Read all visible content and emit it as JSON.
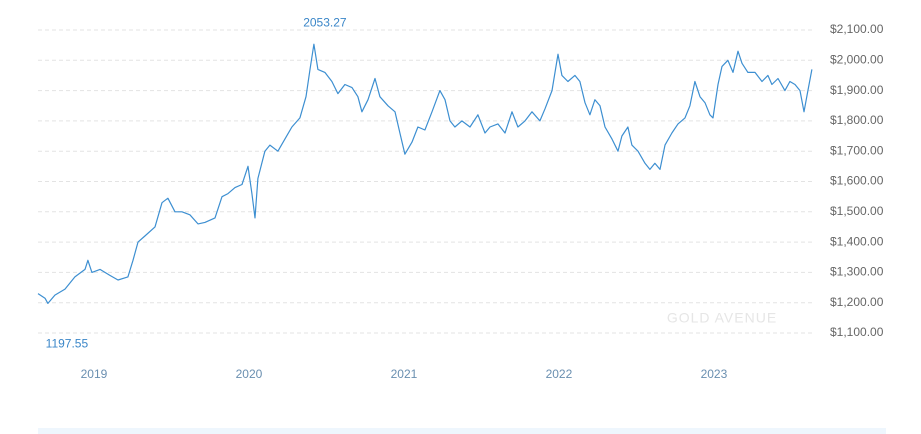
{
  "chart_data": {
    "type": "line",
    "max_label": "2053.27",
    "min_label": "1197.55",
    "watermark": "GOLD AVENUE",
    "series": [
      {
        "color": "#3d8fd1",
        "x": [
          2018.639,
          2018.684,
          2018.703,
          2018.748,
          2018.813,
          2018.877,
          2018.942,
          2018.961,
          2018.987,
          2019.039,
          2019.103,
          2019.155,
          2019.219,
          2019.252,
          2019.284,
          2019.329,
          2019.394,
          2019.439,
          2019.477,
          2019.523,
          2019.568,
          2019.619,
          2019.671,
          2019.716,
          2019.781,
          2019.826,
          2019.865,
          2019.91,
          2019.955,
          2019.994,
          2020.019,
          2020.039,
          2020.058,
          2020.103,
          2020.135,
          2020.187,
          2020.232,
          2020.277,
          2020.329,
          2020.368,
          2020.394,
          2020.419,
          2020.445,
          2020.49,
          2020.535,
          2020.574,
          2020.619,
          2020.665,
          2020.703,
          2020.729,
          2020.768,
          2020.813,
          2020.845,
          2020.897,
          2020.942,
          2020.974,
          2021.006,
          2021.052,
          2021.09,
          2021.135,
          2021.181,
          2021.232,
          2021.265,
          2021.297,
          2021.329,
          2021.374,
          2021.426,
          2021.477,
          2021.523,
          2021.555,
          2021.606,
          2021.652,
          2021.697,
          2021.735,
          2021.781,
          2021.826,
          2021.877,
          2021.91,
          2021.955,
          2021.994,
          2022.019,
          2022.058,
          2022.103,
          2022.135,
          2022.168,
          2022.2,
          2022.232,
          2022.265,
          2022.297,
          2022.342,
          2022.381,
          2022.406,
          2022.445,
          2022.471,
          2022.51,
          2022.555,
          2022.587,
          2022.619,
          2022.652,
          2022.684,
          2022.729,
          2022.768,
          2022.813,
          2022.845,
          2022.877,
          2022.91,
          2022.942,
          2022.974,
          2022.994,
          2023.026,
          2023.052,
          2023.09,
          2023.123,
          2023.155,
          2023.181,
          2023.219,
          2023.265,
          2023.31,
          2023.348,
          2023.374,
          2023.413,
          2023.458,
          2023.49,
          2023.523,
          2023.555,
          2023.581,
          2023.606,
          2023.632
        ],
        "values": [
          1230,
          1215,
          1197.55,
          1225,
          1245,
          1285,
          1310,
          1340,
          1300,
          1310,
          1290,
          1275,
          1285,
          1340,
          1400,
          1420,
          1450,
          1530,
          1545,
          1500,
          1500,
          1490,
          1460,
          1465,
          1480,
          1550,
          1560,
          1580,
          1590,
          1650,
          1560,
          1480,
          1610,
          1700,
          1720,
          1700,
          1740,
          1780,
          1810,
          1880,
          1970,
          2053.27,
          1970,
          1960,
          1930,
          1890,
          1920,
          1910,
          1880,
          1830,
          1870,
          1940,
          1880,
          1850,
          1830,
          1760,
          1690,
          1730,
          1780,
          1770,
          1830,
          1900,
          1870,
          1800,
          1780,
          1800,
          1780,
          1820,
          1760,
          1780,
          1790,
          1760,
          1830,
          1780,
          1800,
          1830,
          1800,
          1840,
          1900,
          2020,
          1950,
          1930,
          1950,
          1930,
          1860,
          1820,
          1870,
          1850,
          1780,
          1740,
          1700,
          1750,
          1780,
          1720,
          1700,
          1660,
          1640,
          1660,
          1640,
          1720,
          1760,
          1790,
          1810,
          1850,
          1930,
          1880,
          1860,
          1820,
          1810,
          1920,
          1980,
          2000,
          1960,
          2030,
          1990,
          1960,
          1960,
          1930,
          1950,
          1920,
          1940,
          1900,
          1930,
          1920,
          1900,
          1830,
          1900,
          1970
        ]
      }
    ],
    "xlim": [
      2018.639,
      2023.652
    ],
    "xticks": [
      2019,
      2020,
      2021,
      2022,
      2023
    ],
    "ylim": [
      1100,
      2100
    ],
    "yticks": [
      {
        "value": 1100,
        "label": "$1,100.00"
      },
      {
        "value": 1200,
        "label": "$1,200.00"
      },
      {
        "value": 1300,
        "label": "$1,300.00"
      },
      {
        "value": 1400,
        "label": "$1,400.00"
      },
      {
        "value": 1500,
        "label": "$1,500.00"
      },
      {
        "value": 1600,
        "label": "$1,600.00"
      },
      {
        "value": 1700,
        "label": "$1,700.00"
      },
      {
        "value": 1800,
        "label": "$1,800.00"
      },
      {
        "value": 1900,
        "label": "$1,900.00"
      },
      {
        "value": 2000,
        "label": "$2,000.00"
      },
      {
        "value": 2100,
        "label": "$2,100.00"
      }
    ],
    "grid": true
  }
}
